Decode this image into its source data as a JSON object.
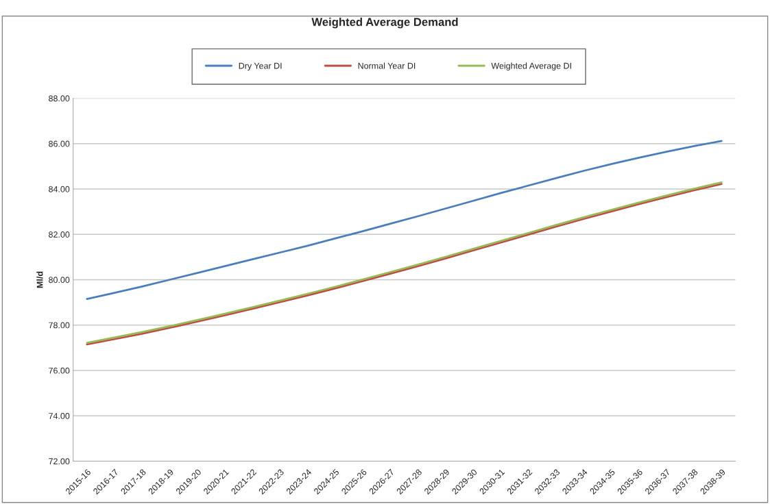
{
  "chart_data": {
    "type": "line",
    "title": "Weighted Average Demand",
    "ylabel": "Ml/d",
    "categories": [
      "2015-16",
      "2016-17",
      "2017-18",
      "2018-19",
      "2019-20",
      "2020-21",
      "2021-22",
      "2022-23",
      "2023-24",
      "2024-25",
      "2025-26",
      "2026-27",
      "2027-28",
      "2028-29",
      "2029-30",
      "2030-31",
      "2031-32",
      "2032-33",
      "2033-34",
      "2034-35",
      "2035-36",
      "2036-37",
      "2037-38",
      "2038-39"
    ],
    "series": [
      {
        "name": "Dry Year DI",
        "color": "#4a7ebb",
        "values": [
          79.15,
          79.42,
          79.7,
          80.0,
          80.3,
          80.6,
          80.9,
          81.2,
          81.5,
          81.82,
          82.14,
          82.47,
          82.8,
          83.14,
          83.48,
          83.82,
          84.15,
          84.48,
          84.8,
          85.1,
          85.38,
          85.64,
          85.89,
          86.12
        ]
      },
      {
        "name": "Normal Year DI",
        "color": "#be4b48",
        "values": [
          77.15,
          77.38,
          77.62,
          77.88,
          78.15,
          78.43,
          78.72,
          79.01,
          79.31,
          79.62,
          79.94,
          80.27,
          80.6,
          80.94,
          81.29,
          81.64,
          81.99,
          82.34,
          82.68,
          83.01,
          83.33,
          83.64,
          83.94,
          84.22
        ]
      },
      {
        "name": "Weighted Average DI",
        "color": "#98b954",
        "values": [
          77.22,
          77.45,
          77.69,
          77.95,
          78.22,
          78.5,
          78.79,
          79.08,
          79.38,
          79.69,
          80.01,
          80.34,
          80.67,
          81.01,
          81.36,
          81.71,
          82.06,
          82.41,
          82.75,
          83.08,
          83.4,
          83.71,
          84.01,
          84.29
        ]
      }
    ],
    "ylim": [
      72,
      88
    ],
    "yticks": [
      {
        "value": 72,
        "label": "72.00"
      },
      {
        "value": 74,
        "label": "74.00"
      },
      {
        "value": 76,
        "label": "76.00"
      },
      {
        "value": 78,
        "label": "78.00"
      },
      {
        "value": 80,
        "label": "80.00"
      },
      {
        "value": 82,
        "label": "82.00"
      },
      {
        "value": 84,
        "label": "84.00"
      },
      {
        "value": 86,
        "label": "86.00"
      },
      {
        "value": 88,
        "label": "88.00"
      }
    ],
    "grid": "y",
    "legend": "top",
    "marker": "none",
    "line_style": "solid"
  }
}
